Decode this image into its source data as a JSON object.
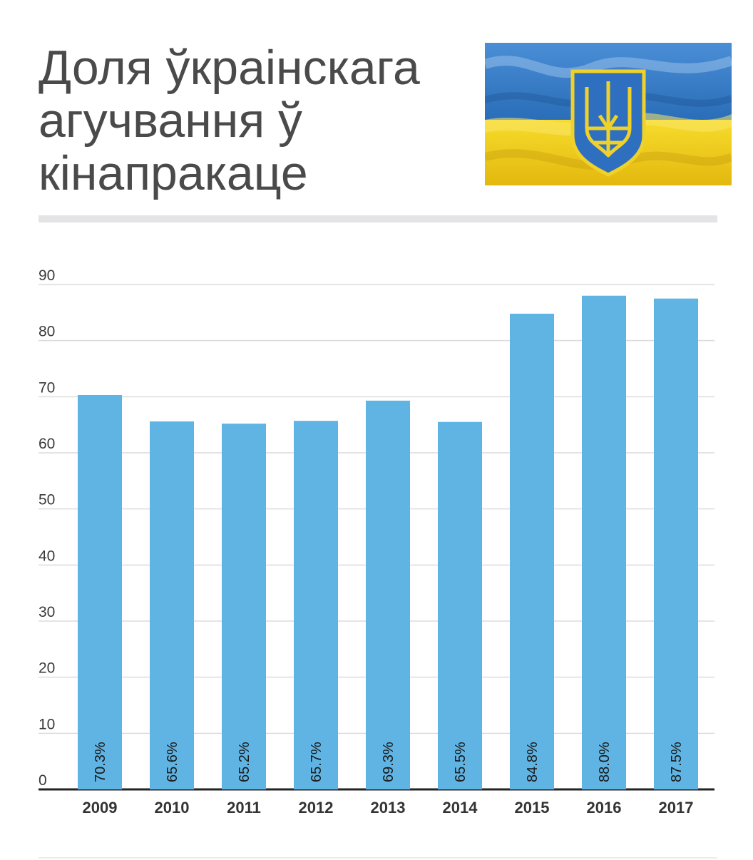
{
  "header": {
    "title": "Доля ўкраінскага агучвання ў кінапракаце",
    "flag_icon": "ukraine-flag-with-trident-icon"
  },
  "colors": {
    "bar": "#5fb4e3",
    "grid": "#dcdcdc",
    "axis": "#222222",
    "flag_blue": "#2f78c4",
    "flag_yellow": "#f2d21a"
  },
  "chart_data": {
    "type": "bar",
    "title": "",
    "xlabel": "",
    "ylabel": "",
    "ylim": [
      0,
      90
    ],
    "yticks": [
      0,
      10,
      20,
      30,
      40,
      50,
      60,
      70,
      80,
      90
    ],
    "grid": true,
    "categories": [
      "2009",
      "2010",
      "2011",
      "2012",
      "2013",
      "2014",
      "2015",
      "2016",
      "2017"
    ],
    "values": [
      70.3,
      65.6,
      65.2,
      65.7,
      69.3,
      65.5,
      84.8,
      88.0,
      87.5
    ],
    "data_labels": [
      "70.3%",
      "65.6%",
      "65.2%",
      "65.7%",
      "69.3%",
      "65.5%",
      "84.8%",
      "88.0%",
      "87.5%"
    ]
  }
}
